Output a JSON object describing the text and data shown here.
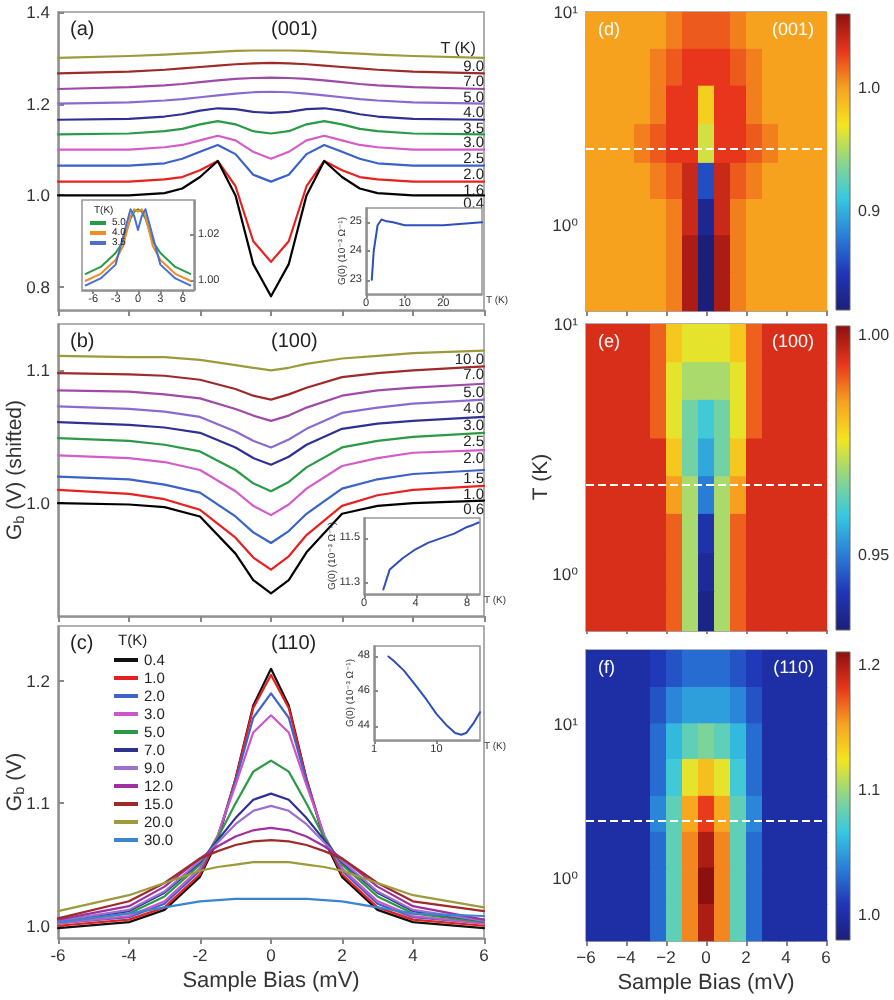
{
  "chart_data": [
    {
      "type": "line",
      "annotations": [
        "(a)",
        "(001)"
      ],
      "legend_title": "T (K)",
      "tick_labels": "y",
      "x": [
        -6,
        -4,
        -3,
        -2.5,
        -2,
        -1.5,
        -1,
        -0.5,
        0,
        0.5,
        1,
        1.5,
        2,
        2.5,
        3,
        4,
        6
      ],
      "xlim": [
        -6,
        6
      ],
      "xticks": [
        -6,
        -4,
        -2,
        0,
        2,
        4,
        6
      ],
      "ylim": [
        0.75,
        1.4
      ],
      "yticks": [
        {
          "value": 0.8,
          "label": "0.8"
        },
        {
          "value": 1.0,
          "label": "1.0"
        },
        {
          "value": 1.2,
          "label": "1.2"
        },
        {
          "value": 1.4,
          "label": "1.4"
        }
      ],
      "series": [
        {
          "name": "9.0",
          "color": "#9c9a3a",
          "values": [
            1.3,
            1.304,
            1.307,
            1.309,
            1.311,
            1.313,
            1.315,
            1.316,
            1.316,
            1.316,
            1.315,
            1.313,
            1.311,
            1.309,
            1.307,
            1.304,
            1.3
          ]
        },
        {
          "name": "7.0",
          "color": "#9e2a2a",
          "values": [
            1.266,
            1.27,
            1.274,
            1.277,
            1.28,
            1.283,
            1.286,
            1.288,
            1.289,
            1.288,
            1.286,
            1.283,
            1.28,
            1.277,
            1.274,
            1.27,
            1.266
          ]
        },
        {
          "name": "5.0",
          "color": "#a04aa8",
          "values": [
            1.232,
            1.236,
            1.24,
            1.243,
            1.247,
            1.251,
            1.254,
            1.256,
            1.257,
            1.256,
            1.254,
            1.251,
            1.247,
            1.243,
            1.24,
            1.236,
            1.232
          ]
        },
        {
          "name": "4.0",
          "color": "#8a6ad0",
          "values": [
            1.2,
            1.203,
            1.207,
            1.21,
            1.214,
            1.218,
            1.222,
            1.225,
            1.226,
            1.225,
            1.222,
            1.218,
            1.214,
            1.21,
            1.207,
            1.203,
            1.2
          ]
        },
        {
          "name": "3.5",
          "color": "#2e3192",
          "values": [
            1.165,
            1.167,
            1.172,
            1.177,
            1.185,
            1.19,
            1.188,
            1.182,
            1.18,
            1.182,
            1.188,
            1.19,
            1.185,
            1.177,
            1.172,
            1.167,
            1.165
          ]
        },
        {
          "name": "3.0",
          "color": "#2a9a46",
          "values": [
            1.133,
            1.135,
            1.14,
            1.145,
            1.155,
            1.162,
            1.155,
            1.14,
            1.135,
            1.14,
            1.155,
            1.162,
            1.155,
            1.145,
            1.14,
            1.135,
            1.133
          ]
        },
        {
          "name": "2.5",
          "color": "#d45bc8",
          "values": [
            1.1,
            1.1,
            1.105,
            1.11,
            1.12,
            1.13,
            1.12,
            1.095,
            1.08,
            1.095,
            1.12,
            1.13,
            1.12,
            1.11,
            1.105,
            1.1,
            1.1
          ]
        },
        {
          "name": "2.0",
          "color": "#3a62c9",
          "values": [
            1.065,
            1.065,
            1.07,
            1.08,
            1.095,
            1.11,
            1.09,
            1.045,
            1.03,
            1.045,
            1.09,
            1.11,
            1.095,
            1.08,
            1.07,
            1.065,
            1.065
          ]
        },
        {
          "name": "1.6",
          "color": "#e82020",
          "values": [
            1.03,
            1.03,
            1.035,
            1.04,
            1.055,
            1.075,
            1.02,
            0.9,
            0.855,
            0.9,
            1.02,
            1.075,
            1.055,
            1.04,
            1.035,
            1.03,
            1.03
          ]
        },
        {
          "name": "0.4",
          "color": "#000000",
          "values": [
            1.0,
            1.0,
            1.005,
            1.015,
            1.04,
            1.075,
            1.0,
            0.85,
            0.78,
            0.85,
            1.0,
            1.075,
            1.04,
            1.015,
            1.005,
            1.0,
            1.0
          ]
        }
      ]
    },
    {
      "type": "line",
      "legend": "top left",
      "legend_title": "T(K)",
      "x": [
        -7,
        -5,
        -3,
        -2,
        -1,
        -0.5,
        0,
        0.5,
        1,
        2,
        3,
        5,
        7
      ],
      "xlim": [
        -7.5,
        7.5
      ],
      "xticks": [
        -6,
        -3,
        0,
        3,
        6
      ],
      "ylim": [
        0.996,
        1.035
      ],
      "yticks": [
        {
          "value": 1.0,
          "label": "1.00"
        },
        {
          "value": 1.02,
          "label": "1.02"
        }
      ],
      "series": [
        {
          "name": "5.0",
          "color": "#2a9a46",
          "values": [
            1.003,
            1.006,
            1.012,
            1.017,
            1.027,
            1.03,
            1.031,
            1.03,
            1.027,
            1.017,
            1.012,
            1.006,
            1.003
          ]
        },
        {
          "name": "4.0",
          "color": "#f08c28",
          "values": [
            1.0,
            1.003,
            1.009,
            1.015,
            1.028,
            1.031,
            1.03,
            1.031,
            1.028,
            1.015,
            1.009,
            1.003,
            1.0
          ]
        },
        {
          "name": "3.5",
          "color": "#4a6fd0",
          "values": [
            0.998,
            1.001,
            1.007,
            1.019,
            1.031,
            1.028,
            1.022,
            1.028,
            1.031,
            1.019,
            1.007,
            1.001,
            0.998
          ]
        }
      ]
    },
    {
      "type": "line",
      "xlabel": "T (K)",
      "ylabel": "G(0) (10⁻³ Ω⁻¹)",
      "x": [
        1.5,
        2,
        3,
        4,
        5,
        7,
        10,
        15,
        20,
        25,
        30
      ],
      "xlim": [
        0,
        30
      ],
      "xticks": [
        0,
        10,
        20
      ],
      "ylim": [
        22.5,
        25.5
      ],
      "yticks": [
        23,
        24,
        25
      ],
      "series": [
        {
          "color": "#2e4fb8",
          "values": [
            23,
            24,
            24.9,
            25.1,
            25.05,
            25,
            24.9,
            24.9,
            24.9,
            24.95,
            25.0
          ]
        }
      ]
    },
    {
      "type": "line",
      "annotations": [
        "(b)",
        "(100)"
      ],
      "ylabel": "G$_{b}$ (V) (shifted)",
      "tick_labels": "y",
      "x": [
        -6,
        -4,
        -3,
        -2,
        -1,
        -0.5,
        0,
        0.5,
        1,
        2,
        3,
        4,
        6
      ],
      "xlim": [
        -6,
        6
      ],
      "xticks": [
        -6,
        -4,
        -2,
        0,
        2,
        4,
        6
      ],
      "ylim": [
        0.915,
        1.135
      ],
      "yticks": [
        {
          "value": 1.0,
          "label": "1.0"
        },
        {
          "value": 1.1,
          "label": "1.1"
        }
      ],
      "series": [
        {
          "name": "10.0",
          "color": "#9c9a3a",
          "values": [
            1.111,
            1.11,
            1.11,
            1.108,
            1.104,
            1.102,
            1.1,
            1.102,
            1.105,
            1.109,
            1.111,
            1.113,
            1.115
          ]
        },
        {
          "name": "7.0",
          "color": "#9e2a2a",
          "values": [
            1.098,
            1.097,
            1.096,
            1.093,
            1.086,
            1.081,
            1.078,
            1.082,
            1.087,
            1.095,
            1.098,
            1.1,
            1.103
          ]
        },
        {
          "name": "5.0",
          "color": "#a04aa8",
          "values": [
            1.085,
            1.084,
            1.082,
            1.079,
            1.071,
            1.066,
            1.062,
            1.066,
            1.072,
            1.081,
            1.085,
            1.087,
            1.09
          ]
        },
        {
          "name": "4.0",
          "color": "#8a6ad0",
          "values": [
            1.073,
            1.071,
            1.069,
            1.065,
            1.054,
            1.047,
            1.042,
            1.048,
            1.056,
            1.068,
            1.072,
            1.075,
            1.078
          ]
        },
        {
          "name": "3.0",
          "color": "#2e3192",
          "values": [
            1.061,
            1.059,
            1.057,
            1.053,
            1.042,
            1.034,
            1.029,
            1.035,
            1.044,
            1.056,
            1.06,
            1.062,
            1.065
          ]
        },
        {
          "name": "2.5",
          "color": "#2a9a46",
          "values": [
            1.049,
            1.047,
            1.044,
            1.039,
            1.025,
            1.015,
            1.009,
            1.016,
            1.027,
            1.042,
            1.047,
            1.05,
            1.053
          ]
        },
        {
          "name": "2.0",
          "color": "#d45bc8",
          "values": [
            1.036,
            1.034,
            1.031,
            1.025,
            1.009,
            0.998,
            0.991,
            0.999,
            1.011,
            1.028,
            1.034,
            1.038,
            1.04
          ]
        },
        {
          "name": "1.5",
          "color": "#3a62c9",
          "values": [
            1.02,
            1.018,
            1.014,
            1.008,
            0.99,
            0.978,
            0.97,
            0.979,
            0.992,
            1.011,
            1.018,
            1.022,
            1.025
          ]
        },
        {
          "name": "1.0",
          "color": "#e82020",
          "values": [
            1.01,
            1.007,
            1.003,
            0.995,
            0.974,
            0.959,
            0.95,
            0.96,
            0.976,
            0.998,
            1.006,
            1.01,
            1.013
          ]
        },
        {
          "name": "0.6",
          "color": "#000000",
          "values": [
            1.0,
            0.999,
            0.997,
            0.99,
            0.962,
            0.942,
            0.932,
            0.942,
            0.963,
            0.992,
            0.998,
            1.0,
            1.002
          ]
        }
      ]
    },
    {
      "type": "line",
      "xlabel": "T (K)",
      "ylabel": "G(0) (10⁻³ Ω⁻¹)",
      "x": [
        1.5,
        2,
        3,
        4,
        5,
        6,
        7,
        8,
        8.5,
        8.9
      ],
      "xlim": [
        0,
        9
      ],
      "xticks": [
        0,
        4,
        8
      ],
      "ylim": [
        11.25,
        11.59
      ],
      "yticks": [
        11.3,
        11.5
      ],
      "series": [
        {
          "color": "#2e4fb8",
          "values": [
            11.27,
            11.36,
            11.41,
            11.45,
            11.48,
            11.5,
            11.52,
            11.55,
            11.56,
            11.57
          ]
        }
      ]
    },
    {
      "type": "line",
      "annotations": [
        "(c)",
        "(110)"
      ],
      "xlabel": "Sample Bias (mV)",
      "ylabel": "G$_{b}$ (V)",
      "legend": "top left",
      "legend_title": "T(K)",
      "x": [
        -6,
        -4,
        -3,
        -2,
        -1.5,
        -1,
        -0.5,
        0,
        0.5,
        1,
        1.5,
        2,
        3,
        4,
        6
      ],
      "xlim": [
        -6,
        6
      ],
      "xticks": [
        -6,
        -4,
        -2,
        0,
        2,
        4,
        6
      ],
      "ylim": [
        0.99,
        1.245
      ],
      "yticks": [
        {
          "value": 1.0,
          "label": "1.0"
        },
        {
          "value": 1.1,
          "label": "1.1"
        },
        {
          "value": 1.2,
          "label": "1.2"
        }
      ],
      "series": [
        {
          "name": "0.4",
          "color": "#111111",
          "values": [
            0.998,
            1.003,
            1.013,
            1.04,
            1.07,
            1.12,
            1.18,
            1.21,
            1.18,
            1.12,
            1.07,
            1.04,
            1.013,
            1.003,
            0.998
          ]
        },
        {
          "name": "1.0",
          "color": "#e62020",
          "values": [
            1.0,
            1.005,
            1.015,
            1.042,
            1.072,
            1.12,
            1.178,
            1.205,
            1.178,
            1.12,
            1.072,
            1.042,
            1.015,
            1.005,
            1.0
          ]
        },
        {
          "name": "2.0",
          "color": "#3f63c8",
          "values": [
            1.002,
            1.007,
            1.018,
            1.045,
            1.073,
            1.118,
            1.17,
            1.19,
            1.17,
            1.118,
            1.073,
            1.045,
            1.018,
            1.007,
            1.002
          ]
        },
        {
          "name": "3.0",
          "color": "#cc55c8",
          "values": [
            1.002,
            1.008,
            1.02,
            1.047,
            1.074,
            1.115,
            1.158,
            1.172,
            1.158,
            1.115,
            1.074,
            1.047,
            1.02,
            1.008,
            1.002
          ]
        },
        {
          "name": "5.0",
          "color": "#2a9a46",
          "values": [
            1.003,
            1.01,
            1.024,
            1.05,
            1.072,
            1.1,
            1.126,
            1.135,
            1.126,
            1.1,
            1.072,
            1.05,
            1.024,
            1.01,
            1.003
          ]
        },
        {
          "name": "7.0",
          "color": "#2e3192",
          "values": [
            1.004,
            1.012,
            1.027,
            1.052,
            1.07,
            1.088,
            1.103,
            1.108,
            1.103,
            1.088,
            1.07,
            1.052,
            1.027,
            1.012,
            1.004
          ]
        },
        {
          "name": "9.0",
          "color": "#9a6fd0",
          "values": [
            1.004,
            1.013,
            1.028,
            1.053,
            1.068,
            1.083,
            1.094,
            1.098,
            1.094,
            1.083,
            1.068,
            1.053,
            1.028,
            1.013,
            1.004
          ]
        },
        {
          "name": "12.0",
          "color": "#a030a0",
          "values": [
            1.005,
            1.016,
            1.032,
            1.055,
            1.065,
            1.073,
            1.078,
            1.08,
            1.078,
            1.073,
            1.065,
            1.055,
            1.032,
            1.016,
            1.005
          ]
        },
        {
          "name": "15.0",
          "color": "#9e2a2a",
          "values": [
            1.006,
            1.02,
            1.035,
            1.055,
            1.061,
            1.066,
            1.069,
            1.07,
            1.069,
            1.066,
            1.061,
            1.055,
            1.035,
            1.02,
            1.012
          ]
        },
        {
          "name": "20.0",
          "color": "#9c9a3a",
          "values": [
            1.012,
            1.025,
            1.035,
            1.045,
            1.048,
            1.05,
            1.052,
            1.052,
            1.052,
            1.05,
            1.048,
            1.045,
            1.035,
            1.025,
            1.015
          ]
        },
        {
          "name": "30.0",
          "color": "#3a84d0",
          "values": [
            1.003,
            1.01,
            1.015,
            1.02,
            1.021,
            1.022,
            1.022,
            1.022,
            1.022,
            1.022,
            1.021,
            1.02,
            1.015,
            1.01,
            1.008
          ]
        }
      ]
    },
    {
      "type": "line",
      "xlabel": "T (K)",
      "ylabel": "G(0) (10⁻³ Ω⁻¹)",
      "log": "x",
      "x": [
        1.7,
        2,
        3,
        5,
        7,
        10,
        15,
        20,
        25,
        30,
        40,
        50
      ],
      "xlim": [
        1,
        50
      ],
      "xticks": [
        1,
        10
      ],
      "ylim": [
        43.2,
        48.6
      ],
      "yticks": [
        44,
        46,
        48
      ],
      "series": [
        {
          "color": "#2e4fb8",
          "values": [
            48,
            47.8,
            47.2,
            46.2,
            45.5,
            44.7,
            44,
            43.6,
            43.5,
            43.6,
            44.2,
            44.8
          ]
        }
      ]
    },
    {
      "type": "heatmap",
      "annotations": [
        "(d)",
        "(001)"
      ],
      "log": "y",
      "tick_labels": "y",
      "x": [
        -5.6,
        -4.8,
        -4,
        -3.2,
        -2.4,
        -1.6,
        -0.8,
        0,
        0.8,
        1.6,
        2.4,
        3.2,
        4,
        4.8,
        5.6
      ],
      "y": [
        8.2,
        5.5,
        3.7,
        2.4,
        1.6,
        1.1,
        0.73,
        0.49
      ],
      "xlim": [
        -6,
        6
      ],
      "xticks": [
        -6,
        -4,
        -2,
        0,
        2,
        4,
        6
      ],
      "ylim": [
        0.4,
        10
      ],
      "yticks": [
        {
          "value": 1,
          "label": "10⁰"
        },
        {
          "value": 10,
          "label": "10¹"
        }
      ],
      "clim": [
        0.82,
        1.06
      ],
      "cticks": [
        {
          "value": 0.9,
          "label": "0.9"
        },
        {
          "value": 1.0,
          "label": "1.0"
        }
      ],
      "ref_lines": [
        {
          "axis": "y",
          "value": 2.3,
          "color": "#ffffff",
          "line_style": "dashed"
        }
      ],
      "cells": [
        [
          1.0,
          1.0,
          1.0,
          1.0,
          1.0,
          1.01,
          1.02,
          1.02,
          1.02,
          1.01,
          1.0,
          1.0,
          1.0,
          1.0,
          1.0
        ],
        [
          1.0,
          1.0,
          1.0,
          1.0,
          1.01,
          1.02,
          1.03,
          1.03,
          1.03,
          1.02,
          1.01,
          1.0,
          1.0,
          1.0,
          1.0
        ],
        [
          1.0,
          1.0,
          1.0,
          1.0,
          1.01,
          1.03,
          1.03,
          0.98,
          1.03,
          1.03,
          1.01,
          1.0,
          1.0,
          1.0,
          1.0
        ],
        [
          1.0,
          1.0,
          1.0,
          1.01,
          1.02,
          1.03,
          1.03,
          0.96,
          1.03,
          1.03,
          1.02,
          1.01,
          1.0,
          1.0,
          1.0
        ],
        [
          1.0,
          1.0,
          1.0,
          1.0,
          1.01,
          1.02,
          1.04,
          0.86,
          1.04,
          1.02,
          1.01,
          1.0,
          1.0,
          1.0,
          1.0
        ],
        [
          1.0,
          1.0,
          1.0,
          1.0,
          1.0,
          1.01,
          1.04,
          0.83,
          1.04,
          1.01,
          1.0,
          1.0,
          1.0,
          1.0,
          1.0
        ],
        [
          1.0,
          1.0,
          1.0,
          1.0,
          1.0,
          1.01,
          1.05,
          0.82,
          1.05,
          1.01,
          1.0,
          1.0,
          1.0,
          1.0,
          1.0
        ],
        [
          1.0,
          1.0,
          1.0,
          1.0,
          1.0,
          1.01,
          1.05,
          0.82,
          1.05,
          1.01,
          1.0,
          1.0,
          1.0,
          1.0,
          1.0
        ]
      ]
    },
    {
      "type": "heatmap",
      "annotations": [
        "(e)",
        "(100)"
      ],
      "ylabel": "T (K)",
      "log": "y",
      "tick_labels": "y",
      "x": [
        -5.6,
        -4.8,
        -4,
        -3.2,
        -2.4,
        -1.6,
        -0.8,
        0,
        0.8,
        1.6,
        2.4,
        3.2,
        4,
        4.8,
        5.6
      ],
      "y": [
        8.4,
        5.9,
        4.2,
        2.9,
        2.1,
        1.45,
        1.02,
        0.72
      ],
      "xlim": [
        -6,
        6
      ],
      "xticks": [
        -6,
        -4,
        -2,
        0,
        2,
        4,
        6
      ],
      "ylim": [
        0.6,
        10
      ],
      "yticks": [
        {
          "value": 1,
          "label": "10⁰"
        },
        {
          "value": 10,
          "label": "10¹"
        }
      ],
      "clim": [
        0.933,
        1.002
      ],
      "cticks": [
        {
          "value": 0.95,
          "label": "0.95"
        },
        {
          "value": 1.0,
          "label": "1.00"
        }
      ],
      "ref_lines": [
        {
          "axis": "y",
          "value": 2.3,
          "color": "#ffffff",
          "line_style": "dashed"
        }
      ],
      "cells": [
        [
          0.995,
          0.995,
          0.995,
          0.995,
          0.99,
          0.98,
          0.975,
          0.975,
          0.975,
          0.98,
          0.99,
          0.995,
          0.995,
          0.995,
          0.995
        ],
        [
          0.995,
          0.995,
          0.995,
          0.995,
          0.99,
          0.975,
          0.97,
          0.97,
          0.97,
          0.975,
          0.99,
          0.995,
          0.995,
          0.995,
          0.995
        ],
        [
          0.995,
          0.995,
          0.995,
          0.995,
          0.99,
          0.975,
          0.965,
          0.96,
          0.965,
          0.975,
          0.99,
          0.995,
          0.995,
          0.995,
          0.995
        ],
        [
          0.995,
          0.995,
          0.995,
          0.995,
          0.995,
          0.98,
          0.965,
          0.955,
          0.965,
          0.98,
          0.995,
          0.995,
          0.995,
          0.995,
          0.995
        ],
        [
          0.995,
          0.995,
          0.995,
          0.995,
          0.995,
          0.985,
          0.97,
          0.95,
          0.97,
          0.985,
          0.995,
          0.995,
          0.995,
          0.995,
          0.995
        ],
        [
          0.995,
          0.995,
          0.995,
          0.995,
          0.995,
          0.99,
          0.97,
          0.94,
          0.97,
          0.99,
          0.995,
          0.995,
          0.995,
          0.995,
          0.995
        ],
        [
          0.995,
          0.995,
          0.995,
          0.995,
          0.995,
          0.99,
          0.97,
          0.937,
          0.97,
          0.99,
          0.995,
          0.995,
          0.995,
          0.995,
          0.995
        ],
        [
          0.995,
          0.995,
          0.995,
          0.995,
          0.995,
          0.99,
          0.97,
          0.935,
          0.97,
          0.99,
          0.995,
          0.995,
          0.995,
          0.995,
          0.995
        ]
      ]
    },
    {
      "type": "heatmap",
      "annotations": [
        "(f)",
        "(110)"
      ],
      "xlabel": "Sample Bias (mV)",
      "log": "y",
      "x": [
        -5.6,
        -4.8,
        -4,
        -3.2,
        -2.4,
        -1.6,
        -0.8,
        0,
        0.8,
        1.6,
        2.4,
        3.2,
        4,
        4.8,
        5.6
      ],
      "y": [
        23,
        13,
        7.8,
        4.5,
        2.6,
        1.54,
        0.9,
        0.52
      ],
      "xlim": [
        -6,
        6
      ],
      "xticks": [
        {
          "value": -6,
          "label": "−6"
        },
        {
          "value": -4,
          "label": "−4"
        },
        {
          "value": -2,
          "label": "−2"
        },
        0,
        2,
        4,
        6
      ],
      "ylim": [
        0.4,
        30
      ],
      "yticks": [
        {
          "value": 1,
          "label": "10⁰"
        },
        {
          "value": 10,
          "label": "10¹"
        }
      ],
      "clim": [
        0.98,
        1.21
      ],
      "cticks": [
        {
          "value": 1.0,
          "label": "1.0"
        },
        {
          "value": 1.1,
          "label": "1.1"
        },
        {
          "value": 1.2,
          "label": "1.2"
        }
      ],
      "ref_lines": [
        {
          "axis": "y",
          "value": 2.4,
          "color": "#ffffff",
          "line_style": "dashed"
        }
      ],
      "cells": [
        [
          1.0,
          1.0,
          1.0,
          1.0,
          1.01,
          1.02,
          1.03,
          1.03,
          1.03,
          1.02,
          1.01,
          1.0,
          1.0,
          1.0,
          1.0
        ],
        [
          1.0,
          1.0,
          1.0,
          1.0,
          1.02,
          1.04,
          1.05,
          1.05,
          1.05,
          1.04,
          1.02,
          1.0,
          1.0,
          1.0,
          1.0
        ],
        [
          1.0,
          1.0,
          1.0,
          1.0,
          1.03,
          1.06,
          1.08,
          1.09,
          1.08,
          1.06,
          1.03,
          1.0,
          1.0,
          1.0,
          1.0
        ],
        [
          1.0,
          1.0,
          1.0,
          1.0,
          1.03,
          1.07,
          1.12,
          1.14,
          1.12,
          1.07,
          1.03,
          1.0,
          1.0,
          1.0,
          1.0
        ],
        [
          1.0,
          1.0,
          1.0,
          1.0,
          1.04,
          1.08,
          1.15,
          1.18,
          1.15,
          1.08,
          1.04,
          1.0,
          1.0,
          1.0,
          1.0
        ],
        [
          1.0,
          1.0,
          1.0,
          1.0,
          1.03,
          1.08,
          1.16,
          1.2,
          1.16,
          1.08,
          1.03,
          1.0,
          1.0,
          1.0,
          1.0
        ],
        [
          1.0,
          1.0,
          1.0,
          1.0,
          1.03,
          1.08,
          1.16,
          1.21,
          1.16,
          1.08,
          1.03,
          1.0,
          1.0,
          1.0,
          1.0
        ],
        [
          1.0,
          1.0,
          1.0,
          1.0,
          1.03,
          1.08,
          1.16,
          1.2,
          1.16,
          1.08,
          1.03,
          1.0,
          1.0,
          1.0,
          1.0
        ]
      ]
    }
  ]
}
